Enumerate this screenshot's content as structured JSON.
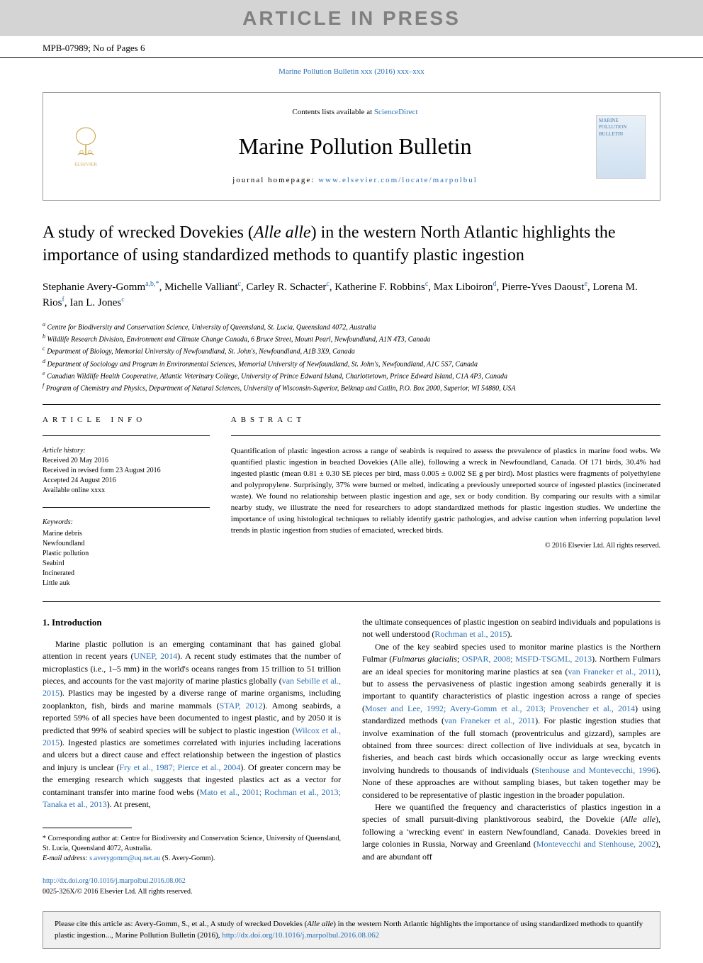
{
  "banner": {
    "article_in_press": "ARTICLE IN PRESS",
    "article_id": "MPB-07989; No of Pages 6",
    "journal_ref_top": "Marine Pollution Bulletin xxx (2016) xxx–xxx",
    "contents_text": "Contents lists available at ",
    "contents_link": "ScienceDirect",
    "journal_name": "Marine Pollution Bulletin",
    "homepage_label": "journal homepage: ",
    "homepage_url": "www.elsevier.com/locate/marpolbul",
    "elsevier_label": "ELSEVIER",
    "cover_text": "MARINE POLLUTION BULLETIN"
  },
  "article": {
    "title_pre": "A study of wrecked Dovekies (",
    "title_species": "Alle alle",
    "title_post": ") in the western North Atlantic highlights the importance of using standardized methods to quantify plastic ingestion",
    "authors_html": "Stephanie Avery-Gomm|a,b,*|, Michelle Valliant|c|, Carley R. Schacter|c|, Katherine F. Robbins|c|, Max Liboiron|d|, Pierre-Yves Daoust|e|, Lorena M. Rios|f|, Ian L. Jones|c|",
    "affiliations": [
      {
        "sup": "a",
        "text": "Centre for Biodiversity and Conservation Science, University of Queensland, St. Lucia, Queensland 4072, Australia"
      },
      {
        "sup": "b",
        "text": "Wildlife Research Division, Environment and Climate Change Canada, 6 Bruce Street, Mount Pearl, Newfoundland, A1N 4T3, Canada"
      },
      {
        "sup": "c",
        "text": "Department of Biology, Memorial University of Newfoundland, St. John's, Newfoundland, A1B 3X9, Canada"
      },
      {
        "sup": "d",
        "text": "Department of Sociology and Program in Environmental Sciences, Memorial University of Newfoundland, St. John's, Newfoundland, A1C 5S7, Canada"
      },
      {
        "sup": "e",
        "text": "Canadian Wildlife Health Cooperative, Atlantic Veterinary College, University of Prince Edward Island, Charlottetown, Prince Edward Island, C1A 4P3, Canada"
      },
      {
        "sup": "f",
        "text": "Program of Chemistry and Physics, Department of Natural Sciences, University of Wisconsin-Superior, Belknap and Catlin, P.O. Box 2000, Superior, WI 54880, USA"
      }
    ]
  },
  "info": {
    "article_info_header": "ARTICLE INFO",
    "abstract_header": "ABSTRACT",
    "history_label": "Article history:",
    "history_lines": [
      "Received 20 May 2016",
      "Received in revised form 23 August 2016",
      "Accepted 24 August 2016",
      "Available online xxxx"
    ],
    "keywords_label": "Keywords:",
    "keywords": [
      "Marine debris",
      "Newfoundland",
      "Plastic pollution",
      "Seabird",
      "Incinerated",
      "Little auk"
    ],
    "abstract_text": "Quantification of plastic ingestion across a range of seabirds is required to assess the prevalence of plastics in marine food webs. We quantified plastic ingestion in beached Dovekies (Alle alle), following a wreck in Newfoundland, Canada. Of 171 birds, 30.4% had ingested plastic (mean 0.81 ± 0.30 SE pieces per bird, mass 0.005 ± 0.002 SE g per bird). Most plastics were fragments of polyethylene and polypropylene. Surprisingly, 37% were burned or melted, indicating a previously unreported source of ingested plastics (incinerated waste). We found no relationship between plastic ingestion and age, sex or body condition. By comparing our results with a similar nearby study, we illustrate the need for researchers to adopt standardized methods for plastic ingestion studies. We underline the importance of using histological techniques to reliably identify gastric pathologies, and advise caution when inferring population level trends in plastic ingestion from studies of emaciated, wrecked birds.",
    "copyright": "© 2016 Elsevier Ltd. All rights reserved."
  },
  "intro": {
    "header": "1. Introduction",
    "col1_p1_a": "Marine plastic pollution is an emerging contaminant that has gained global attention in recent years (",
    "col1_p1_ref1": "UNEP, 2014",
    "col1_p1_b": "). A recent study estimates that the number of microplastics (i.e., 1–5 mm) in the world's oceans ranges from 15 trillion to 51 trillion pieces, and accounts for the vast majority of marine plastics globally (",
    "col1_p1_ref2": "van Sebille et al., 2015",
    "col1_p1_c": "). Plastics may be ingested by a diverse range of marine organisms, including zooplankton, fish, birds and marine mammals (",
    "col1_p1_ref3": "STAP, 2012",
    "col1_p1_d": "). Among seabirds, a reported 59% of all species have been documented to ingest plastic, and by 2050 it is predicted that 99% of seabird species will be subject to plastic ingestion (",
    "col1_p1_ref4": "Wilcox et al., 2015",
    "col1_p1_e": "). Ingested plastics are sometimes correlated with injuries including lacerations and ulcers but a direct cause and effect relationship between the ingestion of plastics and injury is unclear (",
    "col1_p1_ref5": "Fry et al., 1987; Pierce et al., 2004",
    "col1_p1_f": "). Of greater concern may be the emerging research which suggests that ingested plastics act as a vector for contaminant transfer into marine food webs (",
    "col1_p1_ref6": "Mato et al., 2001; Rochman et al., 2013; Tanaka et al., 2013",
    "col1_p1_g": "). At present,",
    "col2_cont_a": "the ultimate consequences of plastic ingestion on seabird individuals and populations is not well understood (",
    "col2_cont_ref": "Rochman et al., 2015",
    "col2_cont_b": ").",
    "col2_p2_a": "One of the key seabird species used to monitor marine plastics is the Northern Fulmar (",
    "col2_p2_species": "Fulmarus glacialis",
    "col2_p2_b": "; ",
    "col2_p2_ref1": "OSPAR, 2008; MSFD-TSGML, 2013",
    "col2_p2_c": "). Northern Fulmars are an ideal species for monitoring marine plastics at sea (",
    "col2_p2_ref2": "van Franeker et al., 2011",
    "col2_p2_d": "), but to assess the pervasiveness of plastic ingestion among seabirds generally it is important to quantify characteristics of plastic ingestion across a range of species (",
    "col2_p2_ref3": "Moser and Lee, 1992; Avery-Gomm et al., 2013; Provencher et al., 2014",
    "col2_p2_e": ") using standardized methods (",
    "col2_p2_ref4": "van Franeker et al., 2011",
    "col2_p2_f": "). For plastic ingestion studies that involve examination of the full stomach (proventriculus and gizzard), samples are obtained from three sources: direct collection of live individuals at sea, bycatch in fisheries, and beach cast birds which occasionally occur as large wrecking events involving hundreds to thousands of individuals (",
    "col2_p2_ref5": "Stenhouse and Montevecchi, 1996",
    "col2_p2_g": "). None of these approaches are without sampling biases, but taken together may be considered to be representative of plastic ingestion in the broader population.",
    "col2_p3_a": "Here we quantified the frequency and characteristics of plastics ingestion in a species of small pursuit-diving planktivorous seabird, the Dovekie (",
    "col2_p3_species": "Alle alle",
    "col2_p3_b": "), following a 'wrecking event' in eastern Newfoundland, Canada. Dovekies breed in large colonies in Russia, Norway and Greenland (",
    "col2_p3_ref": "Montevecchi and Stenhouse, 2002",
    "col2_p3_c": "), and are abundant off"
  },
  "footnote": {
    "corresponding": "* Corresponding author at: Centre for Biodiversity and Conservation Science, University of Queensland, St. Lucia, Queensland 4072, Australia.",
    "email_label": "E-mail address: ",
    "email": "s.averygomm@uq.net.au",
    "email_name": " (S. Avery-Gomm)."
  },
  "doi": {
    "url": "http://dx.doi.org/10.1016/j.marpolbul.2016.08.062",
    "issn": "0025-326X/© 2016 Elsevier Ltd. All rights reserved."
  },
  "citation": {
    "text_a": "Please cite this article as: Avery-Gomm, S., et al., A study of wrecked Dovekies (",
    "species": "Alle alle",
    "text_b": ") in the western North Atlantic highlights the importance of using standardized methods to quantify plastic ingestion..., Marine Pollution Bulletin (2016), ",
    "url": "http://dx.doi.org/10.1016/j.marpolbul.2016.08.062"
  },
  "colors": {
    "link": "#2a6fb5",
    "banner_gray": "#d4d4d4",
    "banner_text_gray": "#808080",
    "border": "#999999"
  }
}
